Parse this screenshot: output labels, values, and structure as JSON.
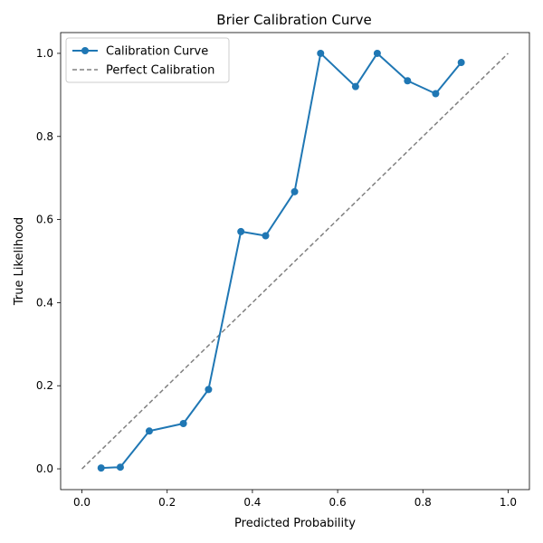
{
  "chart_data": {
    "type": "line",
    "title": "Brier Calibration Curve",
    "xlabel": "Predicted Probability",
    "ylabel": "True Likelihood",
    "xlim": [
      -0.05,
      1.05
    ],
    "ylim": [
      -0.05,
      1.05
    ],
    "xticks": [
      "0.0",
      "0.2",
      "0.4",
      "0.6",
      "0.8",
      "1.0"
    ],
    "yticks": [
      "0.0",
      "0.2",
      "0.4",
      "0.6",
      "0.8",
      "1.0"
    ],
    "grid": false,
    "legend_position": "top-left",
    "series": [
      {
        "name": "Calibration Curve",
        "style": "solid-with-markers",
        "color": "#1f77b4",
        "x": [
          0.045,
          0.09,
          0.158,
          0.238,
          0.297,
          0.373,
          0.431,
          0.499,
          0.56,
          0.642,
          0.693,
          0.764,
          0.83,
          0.89
        ],
        "y": [
          0.002,
          0.004,
          0.091,
          0.109,
          0.191,
          0.571,
          0.561,
          0.667,
          1.0,
          0.92,
          1.0,
          0.934,
          0.903,
          0.978
        ]
      },
      {
        "name": "Perfect Calibration",
        "style": "dashed",
        "color": "#808080",
        "x": [
          0.0,
          1.0
        ],
        "y": [
          0.0,
          1.0
        ]
      }
    ]
  }
}
